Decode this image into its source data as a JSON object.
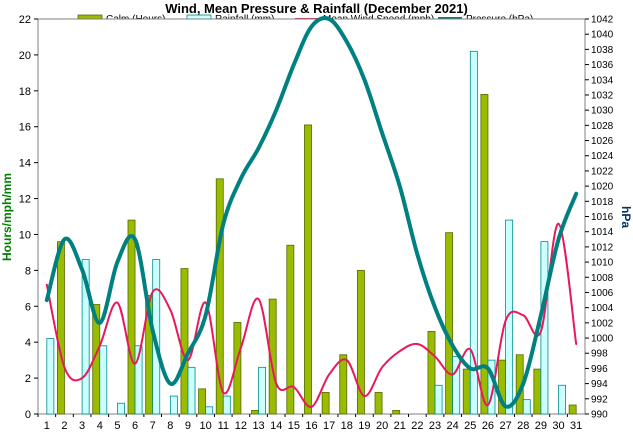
{
  "chart_data": {
    "type": "bar",
    "title": "Wind, Mean Pressure & Rainfall (December 2021)",
    "ylabel_left": "Hours/mph/mm",
    "ylabel_right": "hPa",
    "ylim_left": [
      0,
      22
    ],
    "ylim_right": [
      990,
      1042
    ],
    "yticks_left": [
      0,
      2,
      4,
      6,
      8,
      10,
      12,
      14,
      16,
      18,
      20,
      22
    ],
    "yticks_right": [
      990,
      992,
      994,
      996,
      998,
      1000,
      1002,
      1004,
      1006,
      1008,
      1010,
      1012,
      1014,
      1016,
      1018,
      1020,
      1022,
      1024,
      1026,
      1028,
      1030,
      1032,
      1034,
      1036,
      1038,
      1040,
      1042
    ],
    "categories": [
      "1",
      "2",
      "3",
      "4",
      "5",
      "6",
      "7",
      "8",
      "9",
      "10",
      "11",
      "12",
      "13",
      "14",
      "15",
      "16",
      "17",
      "18",
      "19",
      "20",
      "21",
      "22",
      "23",
      "24",
      "25",
      "26",
      "27",
      "28",
      "29",
      "30",
      "31"
    ],
    "series": [
      {
        "name": "Calm (Hours)",
        "kind": "bar",
        "axis": "left",
        "color": "#99bb00",
        "values": [
          0,
          9.6,
          0,
          6.1,
          0,
          10.8,
          6.6,
          0,
          8.1,
          1.4,
          13.1,
          5.1,
          0.2,
          6.4,
          9.4,
          16.1,
          1.2,
          3.3,
          8.0,
          1.2,
          0.2,
          0,
          4.6,
          10.1,
          2.5,
          17.8,
          3.0,
          3.3,
          2.5,
          0,
          0.5
        ]
      },
      {
        "name": "Rainfall (mm)",
        "kind": "bar",
        "axis": "left",
        "color": "#ccffff",
        "values": [
          4.2,
          0,
          8.6,
          3.8,
          0.6,
          3.8,
          8.6,
          1.0,
          2.6,
          0.4,
          1.0,
          0,
          2.6,
          0,
          0,
          0,
          0,
          0,
          0,
          0,
          0,
          0,
          1.6,
          3.2,
          20.2,
          3.0,
          10.8,
          0.8,
          9.6,
          1.6,
          0
        ]
      },
      {
        "name": "Mean Wind Speed (mph)",
        "kind": "line",
        "axis": "left",
        "color": "#e8195a",
        "values": [
          7.2,
          2.6,
          2.0,
          3.8,
          6.2,
          2.8,
          6.8,
          5.8,
          3.0,
          6.2,
          1.2,
          3.7,
          6.4,
          1.7,
          1.5,
          0.4,
          2.2,
          3.0,
          1.0,
          2.6,
          3.5,
          3.9,
          3.2,
          2.2,
          3.6,
          0.5,
          5.2,
          5.5,
          4.6,
          10.6,
          3.9
        ]
      },
      {
        "name": "Pressure (hPa)",
        "kind": "line",
        "axis": "right",
        "color": "#008080",
        "values": [
          1005,
          1013,
          1009,
          1002,
          1010,
          1013,
          1001,
          994,
          998,
          1003,
          1015,
          1021,
          1025,
          1030,
          1036,
          1041,
          1042,
          1039,
          1034,
          1027,
          1020,
          1011,
          1004,
          999,
          996,
          996,
          991,
          994,
          1003,
          1013,
          1019
        ]
      }
    ]
  }
}
